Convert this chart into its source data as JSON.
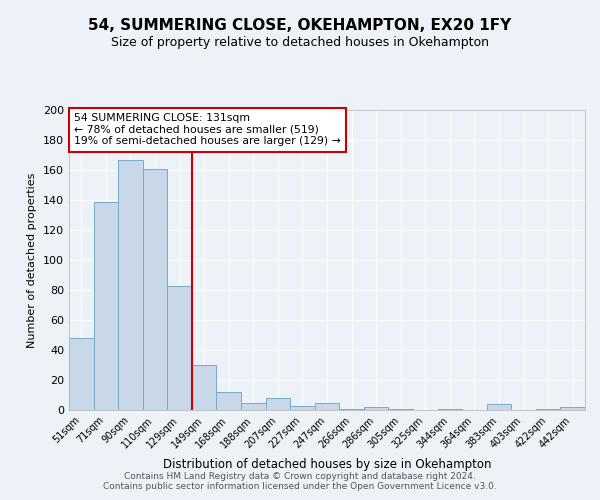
{
  "title": "54, SUMMERING CLOSE, OKEHAMPTON, EX20 1FY",
  "subtitle": "Size of property relative to detached houses in Okehampton",
  "xlabel": "Distribution of detached houses by size in Okehampton",
  "ylabel": "Number of detached properties",
  "categories": [
    "51sqm",
    "71sqm",
    "90sqm",
    "110sqm",
    "129sqm",
    "149sqm",
    "168sqm",
    "188sqm",
    "207sqm",
    "227sqm",
    "247sqm",
    "266sqm",
    "286sqm",
    "305sqm",
    "325sqm",
    "344sqm",
    "364sqm",
    "383sqm",
    "403sqm",
    "422sqm",
    "442sqm"
  ],
  "values": [
    48,
    139,
    167,
    161,
    83,
    30,
    12,
    5,
    8,
    3,
    5,
    1,
    2,
    1,
    0,
    1,
    0,
    4,
    0,
    1,
    2
  ],
  "bar_color": "#c8d8e8",
  "bar_edge_color": "#7aaac8",
  "vline_x": 4.5,
  "vline_color": "#cc0000",
  "annotation_text": "54 SUMMERING CLOSE: 131sqm\n← 78% of detached houses are smaller (519)\n19% of semi-detached houses are larger (129) →",
  "annotation_box_color": "#cc0000",
  "ylim": [
    0,
    200
  ],
  "yticks": [
    0,
    20,
    40,
    60,
    80,
    100,
    120,
    140,
    160,
    180,
    200
  ],
  "footer_line1": "Contains HM Land Registry data © Crown copyright and database right 2024.",
  "footer_line2": "Contains public sector information licensed under the Open Government Licence v3.0.",
  "background_color": "#edf2f8",
  "plot_bg_color": "#edf2f8",
  "grid_color": "#ffffff",
  "title_fontsize": 11,
  "subtitle_fontsize": 9,
  "footer_fontsize": 6.5
}
